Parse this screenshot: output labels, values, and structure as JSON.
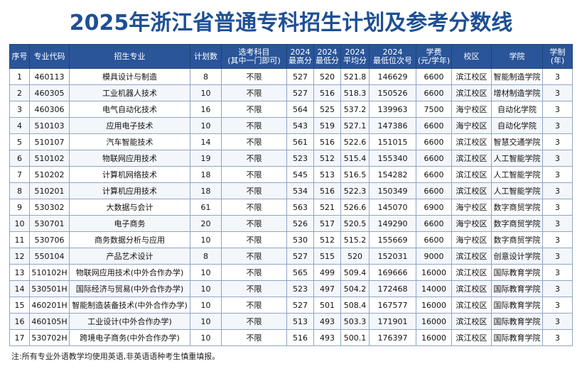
{
  "title": "2025年浙江省普通专科招生计划及参考分数线",
  "columns": [
    "序号",
    "专业代码",
    "招生专业",
    "计划数",
    "选考科目\n(其中一门即可)",
    "2024\n最高分",
    "2024\n最低分",
    "2024\n平均分",
    "2024\n最低位次号",
    "学费\n(元/学年)",
    "校区",
    "学院",
    "学制(年)"
  ],
  "rows": [
    [
      "1",
      "460113",
      "模具设计与制造",
      "8",
      "不限",
      "527",
      "520",
      "521.8",
      "146629",
      "6600",
      "滨江校区",
      "智能制造学院",
      "3"
    ],
    [
      "2",
      "460305",
      "工业机器人技术",
      "10",
      "不限",
      "527",
      "516",
      "518.3",
      "150526",
      "6600",
      "滨江校区",
      "增材制造学院",
      "3"
    ],
    [
      "3",
      "460306",
      "电气自动化技术",
      "16",
      "不限",
      "564",
      "525",
      "537.2",
      "139963",
      "7500",
      "海宁校区",
      "自动化学院",
      "3"
    ],
    [
      "4",
      "510103",
      "应用电子技术",
      "10",
      "不限",
      "543",
      "519",
      "527.1",
      "147386",
      "6600",
      "海宁校区",
      "自动化学院",
      "3"
    ],
    [
      "5",
      "510107",
      "汽车智能技术",
      "14",
      "不限",
      "561",
      "516",
      "522.6",
      "151015",
      "6600",
      "滨江校区",
      "智慧交通学院",
      "3"
    ],
    [
      "6",
      "510102",
      "物联网应用技术",
      "19",
      "不限",
      "523",
      "512",
      "515.4",
      "155340",
      "6600",
      "滨江校区",
      "人工智能学院",
      "3"
    ],
    [
      "7",
      "510202",
      "计算机网络技术",
      "18",
      "不限",
      "545",
      "513",
      "516.5",
      "154282",
      "6600",
      "滨江校区",
      "人工智能学院",
      "3"
    ],
    [
      "8",
      "510201",
      "计算机应用技术",
      "18",
      "不限",
      "534",
      "516",
      "522.3",
      "150349",
      "6600",
      "滨江校区",
      "人工智能学院",
      "3"
    ],
    [
      "9",
      "530302",
      "大数据与会计",
      "61",
      "不限",
      "563",
      "521",
      "526.6",
      "145070",
      "6900",
      "海宁校区",
      "数字商贸学院",
      "3"
    ],
    [
      "10",
      "530701",
      "电子商务",
      "20",
      "不限",
      "526",
      "517",
      "520.5",
      "149290",
      "6600",
      "海宁校区",
      "数字商贸学院",
      "3"
    ],
    [
      "11",
      "530706",
      "商务数据分析与应用",
      "10",
      "不限",
      "530",
      "512",
      "515.2",
      "155669",
      "6600",
      "海宁校区",
      "数字商贸学院",
      "3"
    ],
    [
      "12",
      "550104",
      "产品艺术设计",
      "8",
      "不限",
      "527",
      "515",
      "520",
      "152031",
      "9000",
      "滨江校区",
      "创意设计学院",
      "3"
    ],
    [
      "13",
      "510102H",
      "物联网应用技术(中外合作办学)",
      "10",
      "不限",
      "565",
      "499",
      "509.4",
      "169666",
      "16000",
      "滨江校区",
      "国际教育学院",
      "3"
    ],
    [
      "14",
      "530501H",
      "国际经济与贸易(中外合作办学)",
      "10",
      "不限",
      "523",
      "497",
      "504.2",
      "172468",
      "14000",
      "滨江校区",
      "国际教育学院",
      "3"
    ],
    [
      "15",
      "460201H",
      "智能制造装备技术(中外合作办学)",
      "10",
      "不限",
      "527",
      "501",
      "508.4",
      "167577",
      "16000",
      "滨江校区",
      "国际教育学院",
      "3"
    ],
    [
      "16",
      "460105H",
      "工业设计(中外合作办学)",
      "10",
      "不限",
      "513",
      "493",
      "503.3",
      "171901",
      "16000",
      "滨江校区",
      "国际教育学院",
      "3"
    ],
    [
      "17",
      "530702H",
      "跨境电子商务(中外合作办学)",
      "10",
      "不限",
      "516",
      "493",
      "500.1",
      "176397",
      "16000",
      "滨江校区",
      "国际教育学院",
      "3"
    ]
  ],
  "note": "注:所有专业外语教学均使用英语,非英语语种考生慎重填报。"
}
